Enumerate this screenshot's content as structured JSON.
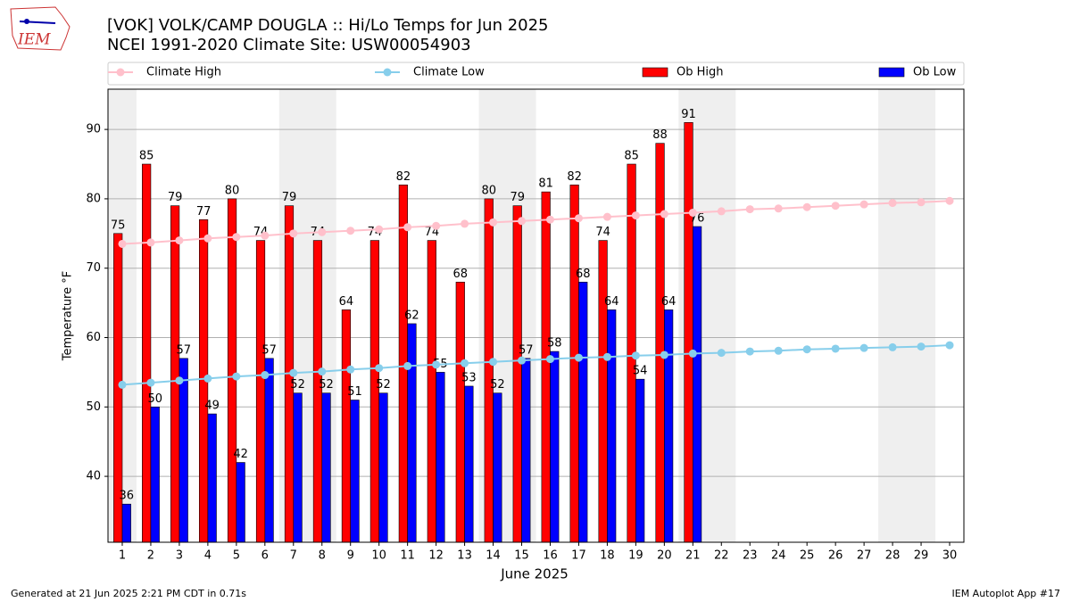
{
  "logo_text": "IEM",
  "footer_left": "Generated at 21 Jun 2025 2:21 PM CDT in 0.71s",
  "footer_right": "IEM Autoplot App #17",
  "chart_data": {
    "type": "bar",
    "title": "[VOK] VOLK/CAMP DOUGLA :: Hi/Lo Temps for Jun 2025",
    "subtitle": "NCEI 1991-2020 Climate Site: USW00054903",
    "xlabel": "June 2025",
    "ylabel": "Temperature °F",
    "x": [
      1,
      2,
      3,
      4,
      5,
      6,
      7,
      8,
      9,
      10,
      11,
      12,
      13,
      14,
      15,
      16,
      17,
      18,
      19,
      20,
      21,
      22,
      23,
      24,
      25,
      26,
      27,
      28,
      29,
      30
    ],
    "xlim": [
      0.5,
      30.5
    ],
    "ylim": [
      30.5,
      95.8
    ],
    "yticks": [
      40,
      50,
      60,
      70,
      80,
      90
    ],
    "grid": true,
    "shaded_x": [
      [
        0.5,
        1.5
      ],
      [
        6.5,
        8.5
      ],
      [
        13.5,
        15.5
      ],
      [
        20.5,
        22.5
      ],
      [
        27.5,
        29.5
      ]
    ],
    "series": [
      {
        "name": "Climate High",
        "type": "line",
        "color": "#ffc0cb",
        "values": [
          73.5,
          73.7,
          74.0,
          74.3,
          74.5,
          74.7,
          75.0,
          75.2,
          75.4,
          75.6,
          75.9,
          76.1,
          76.4,
          76.6,
          76.8,
          77.0,
          77.2,
          77.4,
          77.6,
          77.8,
          78.0,
          78.2,
          78.5,
          78.6,
          78.8,
          79.0,
          79.2,
          79.4,
          79.5,
          79.7
        ]
      },
      {
        "name": "Climate Low",
        "type": "line",
        "color": "#87ceeb",
        "values": [
          53.2,
          53.5,
          53.8,
          54.1,
          54.4,
          54.6,
          54.9,
          55.1,
          55.4,
          55.6,
          55.9,
          56.1,
          56.3,
          56.5,
          56.7,
          56.9,
          57.1,
          57.2,
          57.4,
          57.5,
          57.7,
          57.8,
          58.0,
          58.1,
          58.3,
          58.4,
          58.5,
          58.6,
          58.7,
          58.9
        ]
      },
      {
        "name": "Ob High",
        "type": "bar",
        "color": "#ff0000",
        "values": [
          75,
          85,
          79,
          77,
          80,
          74,
          79,
          74,
          64,
          74,
          82,
          74,
          68,
          80,
          79,
          81,
          82,
          74,
          85,
          88,
          91,
          null,
          null,
          null,
          null,
          null,
          null,
          null,
          null,
          null
        ]
      },
      {
        "name": "Ob Low",
        "type": "bar",
        "color": "#0000ff",
        "values": [
          36,
          50,
          57,
          49,
          42,
          57,
          52,
          52,
          51,
          52,
          62,
          55,
          53,
          52,
          57,
          58,
          68,
          64,
          54,
          64,
          76,
          null,
          null,
          null,
          null,
          null,
          null,
          null,
          null,
          null
        ]
      }
    ]
  }
}
